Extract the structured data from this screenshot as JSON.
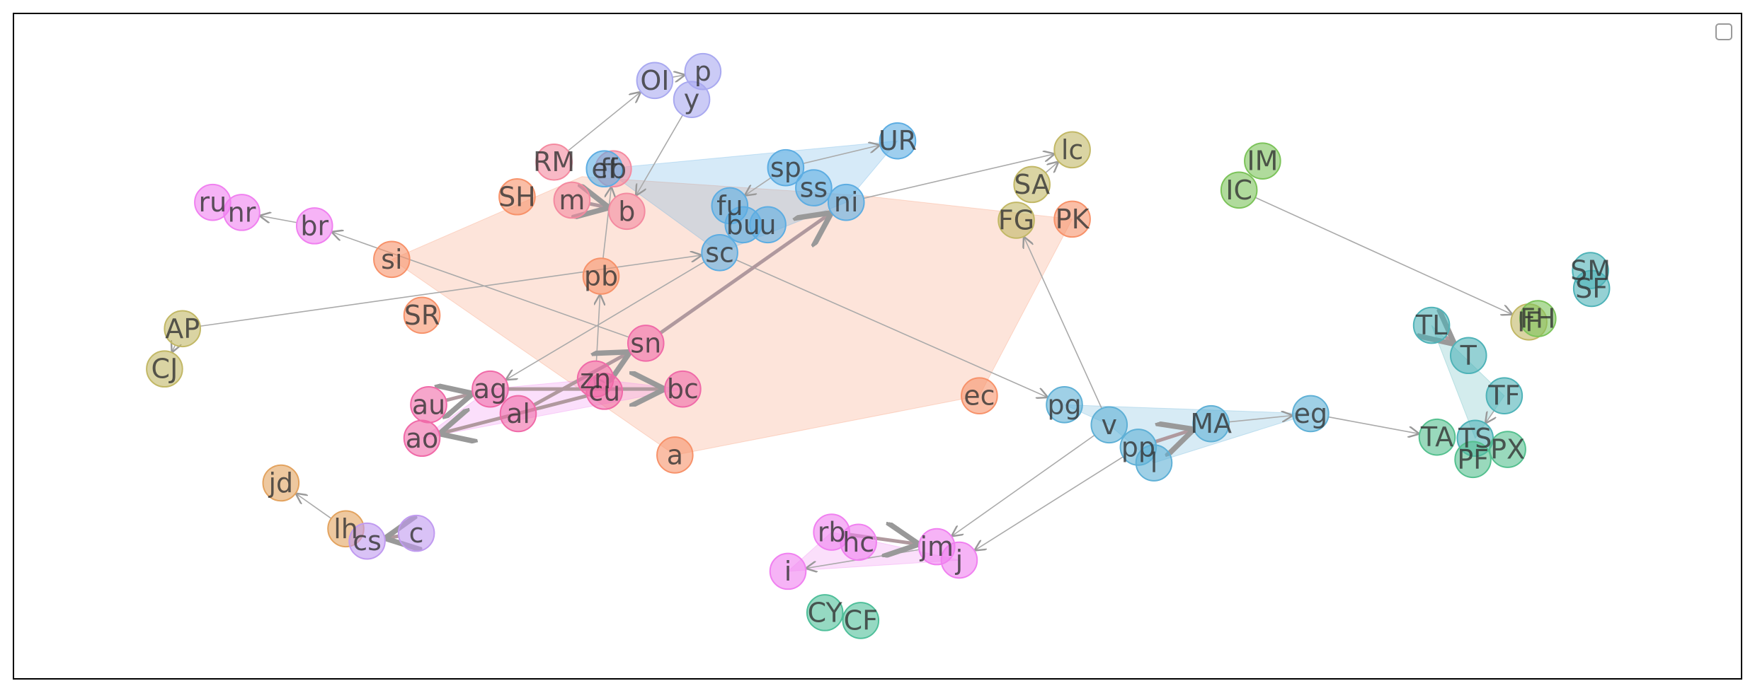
{
  "nodes": [
    "SH",
    "si",
    "SR",
    "pb",
    "ec",
    "a",
    "PK",
    "RM",
    "m",
    "b",
    "fb",
    "ef",
    "sp",
    "UR",
    "ss",
    "ni",
    "fu",
    "bu",
    "u",
    "sc",
    "OI",
    "p",
    "y",
    "lc",
    "SA",
    "FG",
    "AP",
    "CJ",
    "IM",
    "IC",
    "IF",
    "FH",
    "SM",
    "SF",
    "TL",
    "T",
    "TF",
    "TA",
    "TS",
    "PX",
    "PF",
    "pg",
    "v",
    "pp",
    "l",
    "MA",
    "eg",
    "ru",
    "nr",
    "br",
    "rb",
    "hc",
    "jm",
    "j",
    "i",
    "au",
    "ag",
    "ao",
    "al",
    "zn",
    "cu",
    "sn",
    "bc",
    "jd",
    "lh",
    "cs",
    "c",
    "CY",
    "CF"
  ]
}
